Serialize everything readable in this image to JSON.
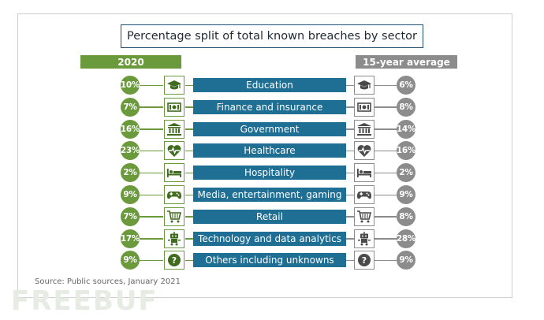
{
  "title": "Percentage split of total known breaches by sector",
  "left_header": "2020",
  "right_header": "15-year average",
  "source": "Source: Public sources, January 2021",
  "watermark": "FREEBUF",
  "colors": {
    "left": "#6a9a3c",
    "right": "#8c8c8c",
    "bar": "#1f6e94",
    "title_border": "#1d4e6e"
  },
  "chart_data": {
    "type": "table",
    "title": "Percentage split of total known breaches by sector",
    "categories": [
      "Education",
      "Finance and insurance",
      "Government",
      "Healthcare",
      "Hospitality",
      "Media, entertainment, gaming",
      "Retail",
      "Technology and data analytics",
      "Others including unknowns"
    ],
    "series": [
      {
        "name": "2020",
        "values": [
          10,
          7,
          16,
          23,
          2,
          9,
          7,
          17,
          9
        ]
      },
      {
        "name": "15-year average",
        "values": [
          6,
          8,
          14,
          16,
          2,
          9,
          8,
          28,
          9
        ]
      }
    ],
    "rows": [
      {
        "label": "Education",
        "icon": "graduation-cap-icon",
        "y2020": "10%",
        "avg": "6%"
      },
      {
        "label": "Finance and insurance",
        "icon": "cash-icon",
        "y2020": "7%",
        "avg": "8%"
      },
      {
        "label": "Government",
        "icon": "government-building-icon",
        "y2020": "16%",
        "avg": "14%"
      },
      {
        "label": "Healthcare",
        "icon": "heart-pulse-icon",
        "y2020": "23%",
        "avg": "16%"
      },
      {
        "label": "Hospitality",
        "icon": "bed-icon",
        "y2020": "2%",
        "avg": "2%"
      },
      {
        "label": "Media, entertainment, gaming",
        "icon": "gamepad-icon",
        "y2020": "9%",
        "avg": "9%"
      },
      {
        "label": "Retail",
        "icon": "shopping-cart-icon",
        "y2020": "7%",
        "avg": "8%"
      },
      {
        "label": "Technology and data analytics",
        "icon": "robot-icon",
        "y2020": "17%",
        "avg": "28%"
      },
      {
        "label": "Others including unknowns",
        "icon": "question-mark-icon",
        "y2020": "9%",
        "avg": "9%"
      }
    ]
  }
}
